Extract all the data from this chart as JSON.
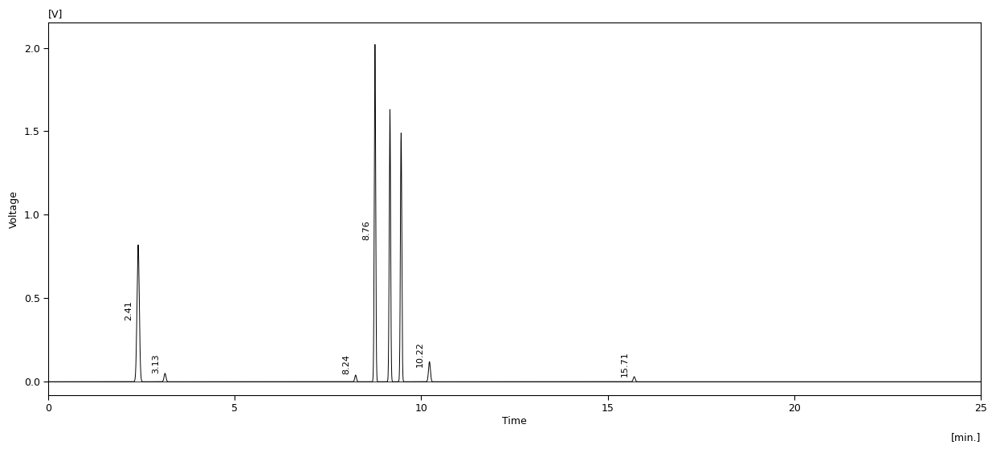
{
  "peaks": [
    {
      "time": 2.41,
      "height": 0.82,
      "sigma": 0.03,
      "label": "2.41"
    },
    {
      "time": 3.13,
      "height": 0.05,
      "sigma": 0.025,
      "label": "3.13"
    },
    {
      "time": 8.24,
      "height": 0.04,
      "sigma": 0.022,
      "label": "8.24"
    },
    {
      "time": 8.76,
      "height": 2.02,
      "sigma": 0.018,
      "label": "8.76"
    },
    {
      "time": 9.16,
      "height": 1.63,
      "sigma": 0.018,
      "label": ""
    },
    {
      "time": 9.46,
      "height": 1.49,
      "sigma": 0.018,
      "label": ""
    },
    {
      "time": 10.22,
      "height": 0.12,
      "sigma": 0.025,
      "label": "10.22"
    },
    {
      "time": 15.71,
      "height": 0.03,
      "sigma": 0.025,
      "label": "15.71"
    }
  ],
  "xlim": [
    0,
    25
  ],
  "ylim": [
    -0.08,
    2.15
  ],
  "xticks": [
    0,
    5,
    10,
    15,
    20,
    25
  ],
  "yticks": [
    0.0,
    0.5,
    1.0,
    1.5,
    2.0
  ],
  "xlabel": "Time",
  "xunit": "[min.]",
  "ylabel": "Voltage",
  "yunit": "[V]",
  "background_color": "#ffffff",
  "line_color": "#000000",
  "label_fontsize": 8,
  "axis_label_fontsize": 9
}
